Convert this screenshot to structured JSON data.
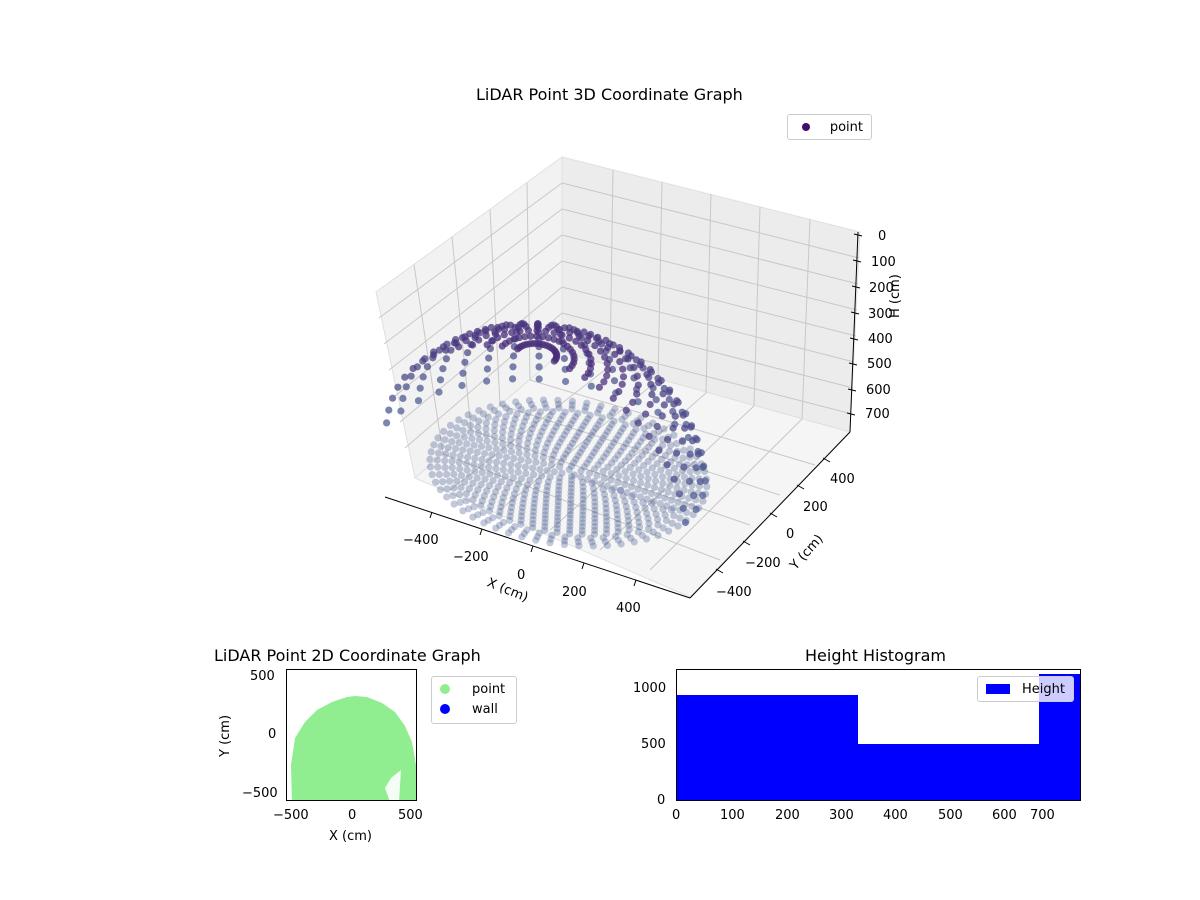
{
  "chart_data": [
    {
      "type": "scatter",
      "subtype": "3d",
      "title": "LiDAR Point 3D Coordinate Graph",
      "xlabel": "X (cm)",
      "ylabel": "Y (cm)",
      "zlabel": "H (cm)",
      "x_ticks": [
        "−400",
        "−200",
        "0",
        "200",
        "400"
      ],
      "y_ticks": [
        "−400",
        "−200",
        "0",
        "200",
        "400"
      ],
      "z_ticks": [
        "0",
        "100",
        "200",
        "300",
        "400",
        "500",
        "600",
        "700"
      ],
      "zlim": [
        0,
        750
      ],
      "z_inverted": true,
      "legend": [
        {
          "label": "point",
          "color": "#440f6b"
        }
      ],
      "colormap": "viridis-like (dark purple top, slate blue bottom)",
      "description": "Dome-shaped point cloud, ~radius 500 cm, points arranged in vertical scan columns; dense concentric rings at floor center"
    },
    {
      "type": "scatter",
      "title": "LiDAR Point 2D Coordinate Graph",
      "xlabel": "X (cm)",
      "ylabel": "Y (cm)",
      "x_ticks": [
        "−500",
        "0",
        "500"
      ],
      "y_ticks": [
        "−500",
        "0",
        "500"
      ],
      "xlim": [
        -560,
        560
      ],
      "ylim": [
        -560,
        560
      ],
      "legend": [
        {
          "label": "point",
          "color": "#90ee90"
        },
        {
          "label": "wall",
          "color": "#0000ff"
        }
      ],
      "description": "Filled semicircular region of light-green points, X from -500 to 500, Y from -500 up to ~230"
    },
    {
      "type": "bar",
      "subtype": "histogram",
      "title": "Height Histogram",
      "bins": [
        [
          0,
          345
        ],
        [
          345,
          690
        ],
        [
          690,
          770
        ]
      ],
      "values": [
        930,
        500,
        1130
      ],
      "x_ticks": [
        "0",
        "100",
        "200",
        "300",
        "400",
        "500",
        "600",
        "700"
      ],
      "y_ticks": [
        "0",
        "500",
        "1000"
      ],
      "xlim": [
        0,
        770
      ],
      "ylim": [
        0,
        1180
      ],
      "legend": [
        {
          "label": "Height",
          "color": "#0000ff"
        }
      ],
      "legend_position": "upper right",
      "grid": false
    }
  ],
  "ui": {
    "title3d": "LiDAR Point 3D Coordinate Graph",
    "title2d": "LiDAR Point 2D Coordinate Graph",
    "titleHist": "Height Histogram",
    "x3d": "X (cm)",
    "y3d": "Y (cm)",
    "z3d": "H (cm)",
    "x2d": "X (cm)",
    "y2d": "Y (cm)",
    "leg3d": "point",
    "leg2d_point": "point",
    "leg2d_wall": "wall",
    "legHist": "Height",
    "xt3d": [
      "−400",
      "−200",
      "0",
      "200",
      "400"
    ],
    "yt3d": [
      "−400",
      "−200",
      "0",
      "200",
      "400"
    ],
    "zt3d": [
      "0",
      "100",
      "200",
      "300",
      "400",
      "500",
      "600",
      "700"
    ],
    "xt2d": [
      "−500",
      "0",
      "500"
    ],
    "yt2d": [
      "500",
      "0",
      "−500"
    ],
    "xtH": [
      "0",
      "100",
      "200",
      "300",
      "400",
      "500",
      "600",
      "700"
    ],
    "ytH": [
      "1000",
      "500",
      "0"
    ]
  }
}
